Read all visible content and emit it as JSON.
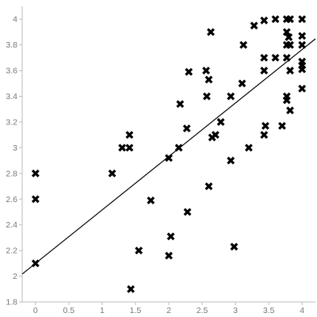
{
  "chart_data": {
    "type": "scatter",
    "title": "",
    "xlabel": "",
    "ylabel": "",
    "xlim": [
      -0.2,
      4.2
    ],
    "ylim": [
      1.8,
      4.1
    ],
    "x_ticks": [
      0,
      0.5,
      1,
      1.5,
      2,
      2.5,
      3,
      3.5,
      4
    ],
    "x_tick_labels": [
      "0",
      "0.5",
      "1",
      "1.5",
      "2",
      "2.5",
      "3",
      "3.5",
      "4"
    ],
    "y_ticks": [
      1.8,
      2,
      2.2,
      2.4,
      2.6,
      2.8,
      3,
      3.2,
      3.4,
      3.6,
      3.8,
      4
    ],
    "y_tick_labels": [
      "1.8",
      "2",
      "2.2",
      "2.4",
      "2.6",
      "2.8",
      "3",
      "3.2",
      "3.4",
      "3.6",
      "3.8",
      "4"
    ],
    "grid": false,
    "marker": "x",
    "series": [
      {
        "points": [
          [
            0,
            2.8
          ],
          [
            0,
            2.6
          ],
          [
            0,
            2.1
          ],
          [
            1.15,
            2.8
          ],
          [
            1.3,
            3.0
          ],
          [
            1.41,
            3.0
          ],
          [
            1.41,
            3.1
          ],
          [
            1.43,
            1.9
          ],
          [
            1.55,
            2.2
          ],
          [
            1.73,
            2.59
          ],
          [
            2.0,
            2.92
          ],
          [
            2.0,
            2.16
          ],
          [
            2.03,
            2.31
          ],
          [
            2.15,
            3.0
          ],
          [
            2.17,
            3.34
          ],
          [
            2.27,
            3.15
          ],
          [
            2.28,
            2.5
          ],
          [
            2.3,
            3.59
          ],
          [
            2.56,
            3.6
          ],
          [
            2.57,
            3.4
          ],
          [
            2.6,
            3.53
          ],
          [
            2.6,
            2.7
          ],
          [
            2.63,
            3.9
          ],
          [
            2.65,
            3.08
          ],
          [
            2.7,
            3.1
          ],
          [
            2.78,
            3.2
          ],
          [
            2.93,
            3.4
          ],
          [
            2.93,
            2.9
          ],
          [
            2.98,
            2.23
          ],
          [
            3.1,
            3.5
          ],
          [
            3.12,
            3.8
          ],
          [
            3.2,
            3.0
          ],
          [
            3.28,
            3.95
          ],
          [
            3.43,
            3.7
          ],
          [
            3.43,
            3.6
          ],
          [
            3.43,
            3.99
          ],
          [
            3.43,
            3.1
          ],
          [
            3.45,
            3.17
          ],
          [
            3.6,
            4.0
          ],
          [
            3.6,
            3.7
          ],
          [
            3.7,
            3.17
          ],
          [
            3.77,
            4.0
          ],
          [
            3.77,
            3.9
          ],
          [
            3.77,
            3.8
          ],
          [
            3.77,
            3.7
          ],
          [
            3.77,
            3.4
          ],
          [
            3.77,
            3.37
          ],
          [
            3.8,
            3.86
          ],
          [
            3.82,
            4.0
          ],
          [
            3.82,
            3.8
          ],
          [
            3.82,
            3.6
          ],
          [
            3.82,
            3.29
          ],
          [
            4.0,
            4.0
          ],
          [
            4.0,
            3.87
          ],
          [
            4.0,
            3.8
          ],
          [
            4.0,
            3.67
          ],
          [
            4.0,
            3.64
          ],
          [
            4.0,
            3.61
          ],
          [
            4.0,
            3.46
          ]
        ]
      }
    ],
    "fit_line": {
      "intercept": 2.1,
      "slope": 0.416
    }
  }
}
